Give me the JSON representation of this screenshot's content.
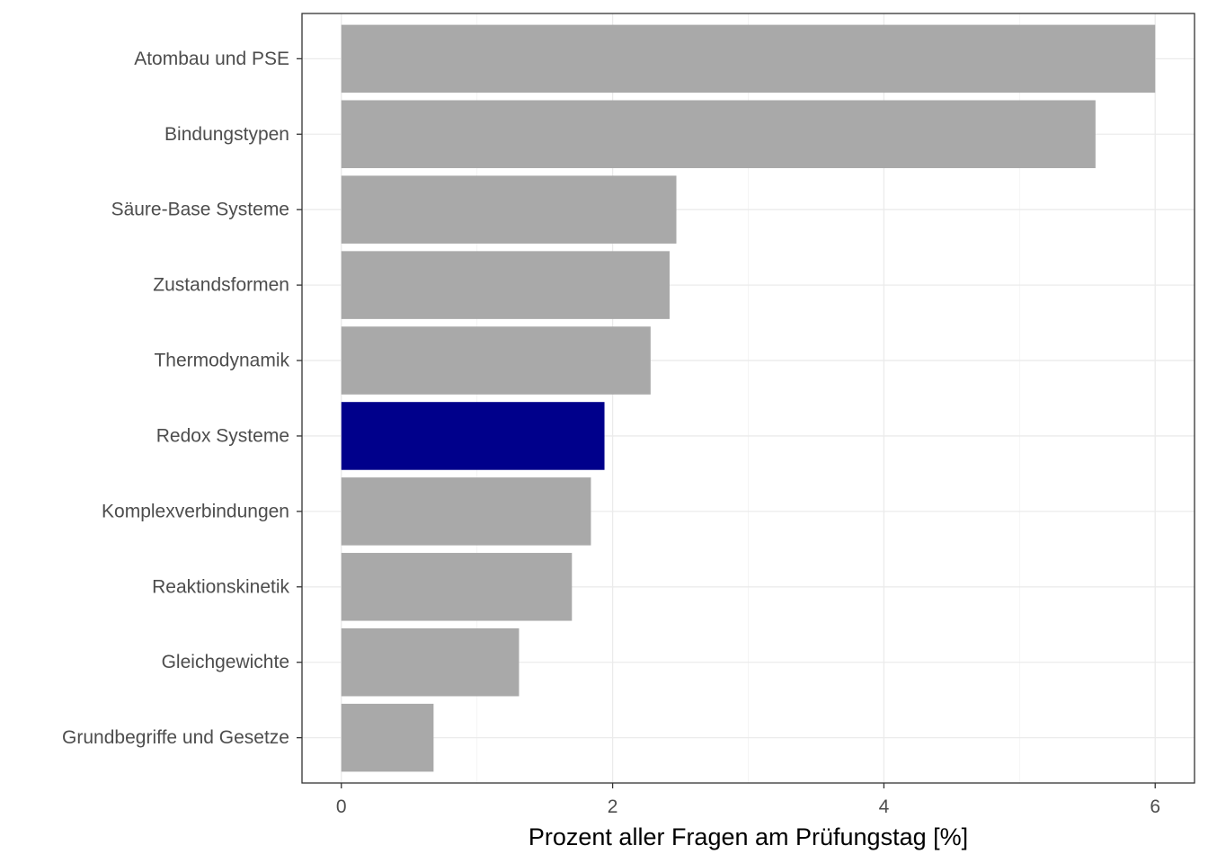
{
  "chart_data": {
    "type": "bar",
    "orientation": "horizontal",
    "categories": [
      "Atombau und PSE",
      "Bindungstypen",
      "Säure-Base Systeme",
      "Zustandsformen",
      "Thermodynamik",
      "Redox Systeme",
      "Komplexverbindungen",
      "Reaktionskinetik",
      "Gleichgewichte",
      "Grundbegriffe und Gesetze"
    ],
    "values": [
      6.0,
      5.56,
      2.47,
      2.42,
      2.28,
      1.94,
      1.84,
      1.7,
      1.31,
      0.68
    ],
    "highlight_category": "Redox Systeme",
    "colors": {
      "default": "#a9a9a9",
      "highlight": "#00008b"
    },
    "title": "",
    "xlabel": "Prozent aller Fragen am Prüfungstag [%]",
    "ylabel": "",
    "xlim": [
      -0.29,
      6.29
    ],
    "xticks": [
      0,
      2,
      4,
      6
    ],
    "xtick_labels": [
      "0",
      "2",
      "4",
      "6"
    ],
    "grid": true,
    "legend": "none"
  }
}
